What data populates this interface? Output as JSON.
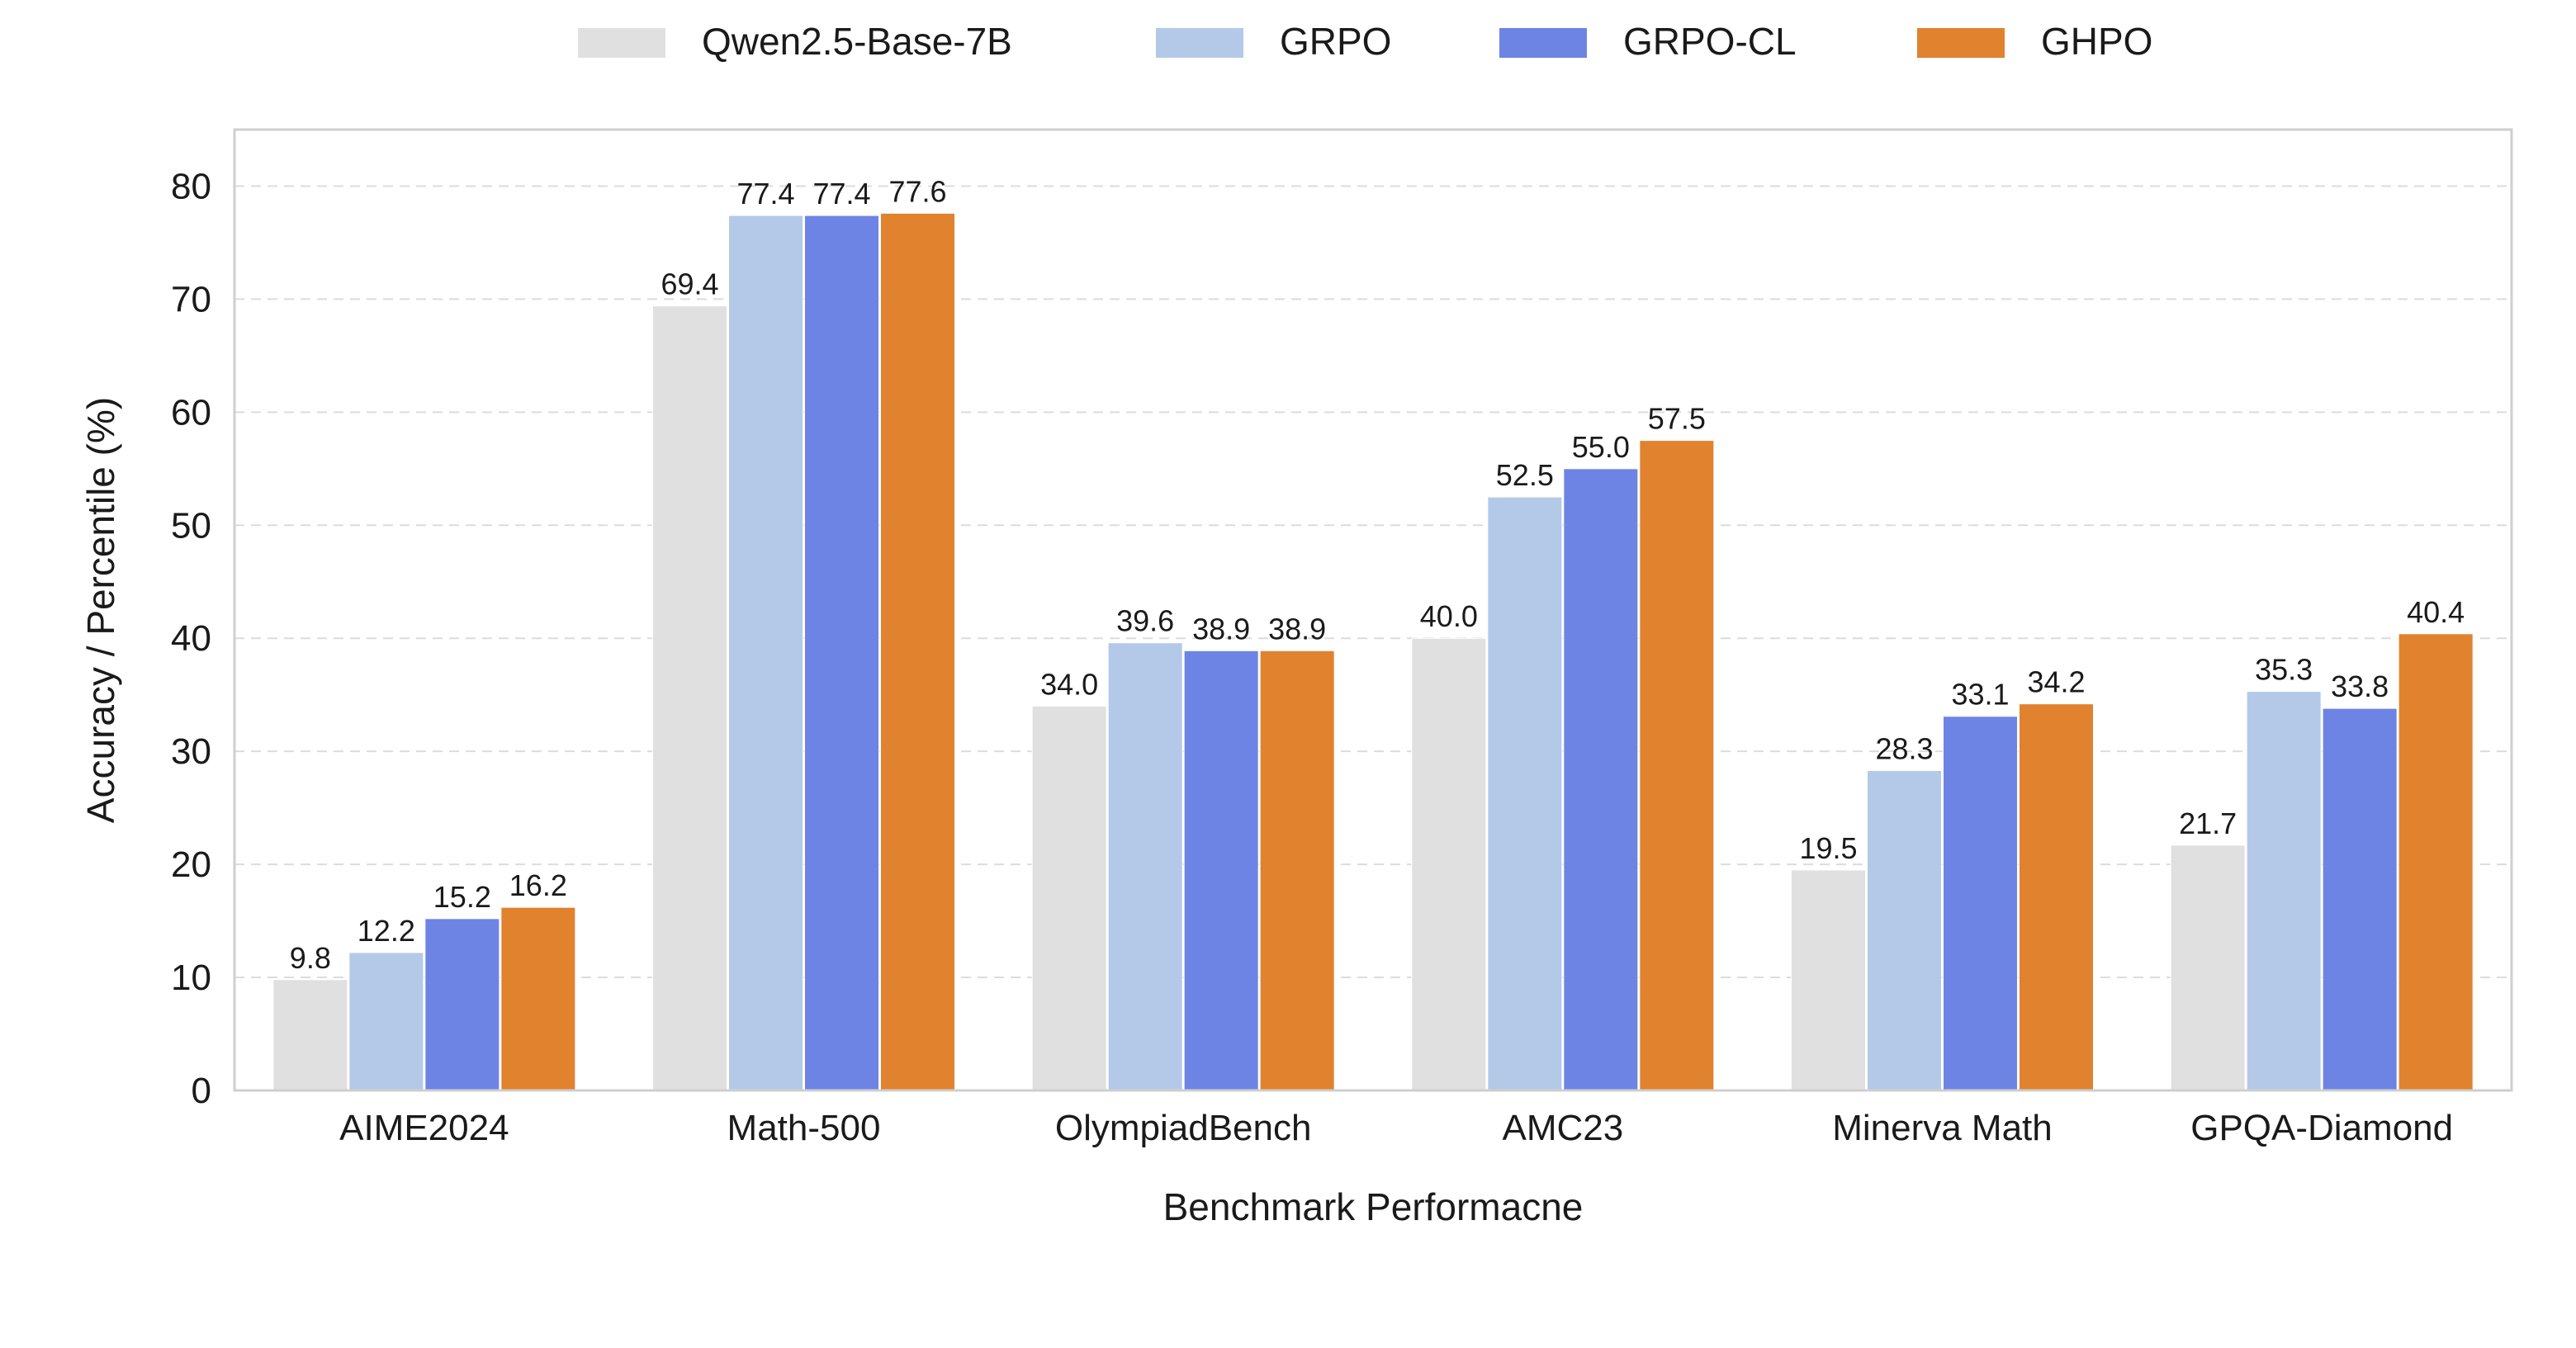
{
  "chart_data": {
    "type": "bar",
    "categories": [
      "AIME2024",
      "Math-500",
      "OlympiadBench",
      "AMC23",
      "Minerva Math",
      "GPQA-Diamond"
    ],
    "series": [
      {
        "name": "Qwen2.5-Base-7B",
        "color": "#e0e0e0",
        "values": [
          9.8,
          69.4,
          34.0,
          40.0,
          19.5,
          21.7
        ]
      },
      {
        "name": "GRPO",
        "color": "#b4c9e8",
        "values": [
          12.2,
          77.4,
          39.6,
          52.5,
          28.3,
          35.3
        ]
      },
      {
        "name": "GRPO-CL",
        "color": "#6d84e4",
        "values": [
          15.2,
          77.4,
          38.9,
          55.0,
          33.1,
          33.8
        ]
      },
      {
        "name": "GHPO",
        "color": "#e0822e",
        "values": [
          16.2,
          77.6,
          38.9,
          57.5,
          34.2,
          40.4
        ]
      }
    ],
    "xlabel": "Benchmark Performacne",
    "ylabel": "Accuracy / Percentile (%)",
    "ylim": [
      0,
      85
    ],
    "yticks": [
      0,
      10,
      20,
      30,
      40,
      50,
      60,
      70,
      80
    ],
    "grid": true,
    "legend_position": "top-center"
  }
}
